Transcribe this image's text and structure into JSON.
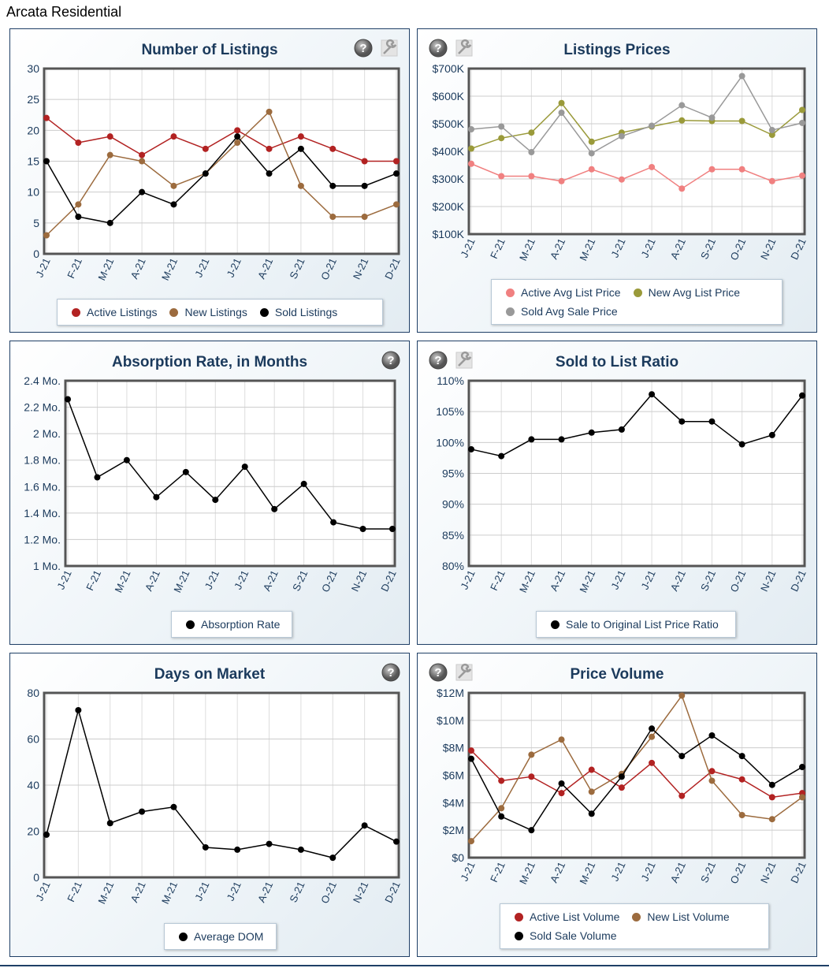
{
  "page_title": "Arcata Residential",
  "categories": [
    "J-21",
    "F-21",
    "M-21",
    "A-21",
    "M-21",
    "J-21",
    "J-21",
    "A-21",
    "S-21",
    "O-21",
    "N-21",
    "D-21"
  ],
  "chart_data": [
    {
      "type": "line",
      "title": "Number of Listings",
      "ylim": [
        0,
        30
      ],
      "yticks": [
        0,
        5,
        10,
        15,
        20,
        25,
        30
      ],
      "ytick_labels": [
        "0",
        "5",
        "10",
        "15",
        "20",
        "25",
        "30"
      ],
      "series": [
        {
          "name": "Active Listings",
          "color": "#b22222",
          "values": [
            22,
            18,
            19,
            16,
            19,
            17,
            20,
            17,
            19,
            17,
            15,
            15
          ]
        },
        {
          "name": "New Listings",
          "color": "#9c6b3e",
          "values": [
            3,
            8,
            16,
            15,
            11,
            13,
            18,
            23,
            11,
            6,
            6,
            8
          ]
        },
        {
          "name": "Sold Listings",
          "color": "#000000",
          "values": [
            15,
            6,
            5,
            10,
            8,
            13,
            19,
            13,
            17,
            11,
            11,
            13
          ]
        }
      ]
    },
    {
      "type": "line",
      "title": "Listings Prices",
      "ylim": [
        100,
        700
      ],
      "yticks": [
        100,
        200,
        300,
        400,
        500,
        600,
        700
      ],
      "ytick_labels": [
        "$100K",
        "$200K",
        "$300K",
        "$400K",
        "$500K",
        "$600K",
        "$700K"
      ],
      "series": [
        {
          "name": "Active Avg List Price",
          "color": "#f08080",
          "values": [
            355,
            310,
            310,
            292,
            335,
            298,
            343,
            265,
            335,
            335,
            292,
            312
          ]
        },
        {
          "name": "New Avg List Price",
          "color": "#9a9a3a",
          "values": [
            410,
            448,
            468,
            575,
            435,
            468,
            490,
            512,
            510,
            510,
            460,
            550
          ]
        },
        {
          "name": "Sold Avg Sale Price",
          "color": "#999999",
          "values": [
            480,
            490,
            397,
            540,
            393,
            455,
            493,
            567,
            522,
            673,
            477,
            503
          ]
        }
      ]
    },
    {
      "type": "line",
      "title": "Absorption Rate, in Months",
      "ylim": [
        1,
        2.4
      ],
      "yticks": [
        1,
        1.2,
        1.4,
        1.6,
        1.8,
        2,
        2.2,
        2.4
      ],
      "ytick_labels": [
        "1 Mo.",
        "1.2 Mo.",
        "1.4 Mo.",
        "1.6 Mo.",
        "1.8 Mo.",
        "2 Mo.",
        "2.2 Mo.",
        "2.4 Mo."
      ],
      "series": [
        {
          "name": "Absorption Rate",
          "color": "#000000",
          "values": [
            2.26,
            1.67,
            1.8,
            1.52,
            1.71,
            1.5,
            1.75,
            1.43,
            1.62,
            1.33,
            1.28,
            1.28
          ]
        }
      ]
    },
    {
      "type": "line",
      "title": "Sold to List Ratio",
      "ylim": [
        80,
        110
      ],
      "yticks": [
        80,
        85,
        90,
        95,
        100,
        105,
        110
      ],
      "ytick_labels": [
        "80%",
        "85%",
        "90%",
        "95%",
        "100%",
        "105%",
        "110%"
      ],
      "series": [
        {
          "name": "Sale to Original List Price Ratio",
          "color": "#000000",
          "values": [
            98.9,
            97.8,
            100.5,
            100.5,
            101.6,
            102.1,
            107.8,
            103.4,
            103.4,
            99.7,
            101.2,
            107.6
          ]
        }
      ]
    },
    {
      "type": "line",
      "title": "Days on Market",
      "ylim": [
        0,
        80
      ],
      "yticks": [
        0,
        20,
        40,
        60,
        80
      ],
      "ytick_labels": [
        "0",
        "20",
        "40",
        "60",
        "80"
      ],
      "series": [
        {
          "name": "Average DOM",
          "color": "#000000",
          "values": [
            18.5,
            72.5,
            23.5,
            28.5,
            30.5,
            13,
            12,
            14.5,
            12,
            8.5,
            22.5,
            15.5
          ]
        }
      ]
    },
    {
      "type": "line",
      "title": "Price Volume",
      "ylim": [
        0,
        12
      ],
      "yticks": [
        0,
        2,
        4,
        6,
        8,
        10,
        12
      ],
      "ytick_labels": [
        "$0",
        "$2M",
        "$4M",
        "$6M",
        "$8M",
        "$10M",
        "$12M"
      ],
      "series": [
        {
          "name": "Active List Volume",
          "color": "#b22222",
          "values": [
            7.8,
            5.6,
            5.9,
            4.7,
            6.4,
            5.1,
            6.9,
            4.5,
            6.3,
            5.7,
            4.4,
            4.7
          ]
        },
        {
          "name": "New List Volume",
          "color": "#9c6b3e",
          "values": [
            1.2,
            3.6,
            7.5,
            8.6,
            4.8,
            6.1,
            8.8,
            11.8,
            5.6,
            3.1,
            2.8,
            4.4
          ]
        },
        {
          "name": "Sold Sale Volume",
          "color": "#000000",
          "values": [
            7.2,
            3.0,
            2.0,
            5.4,
            3.2,
            5.9,
            9.4,
            7.4,
            8.9,
            7.4,
            5.3,
            6.6
          ]
        }
      ]
    }
  ]
}
